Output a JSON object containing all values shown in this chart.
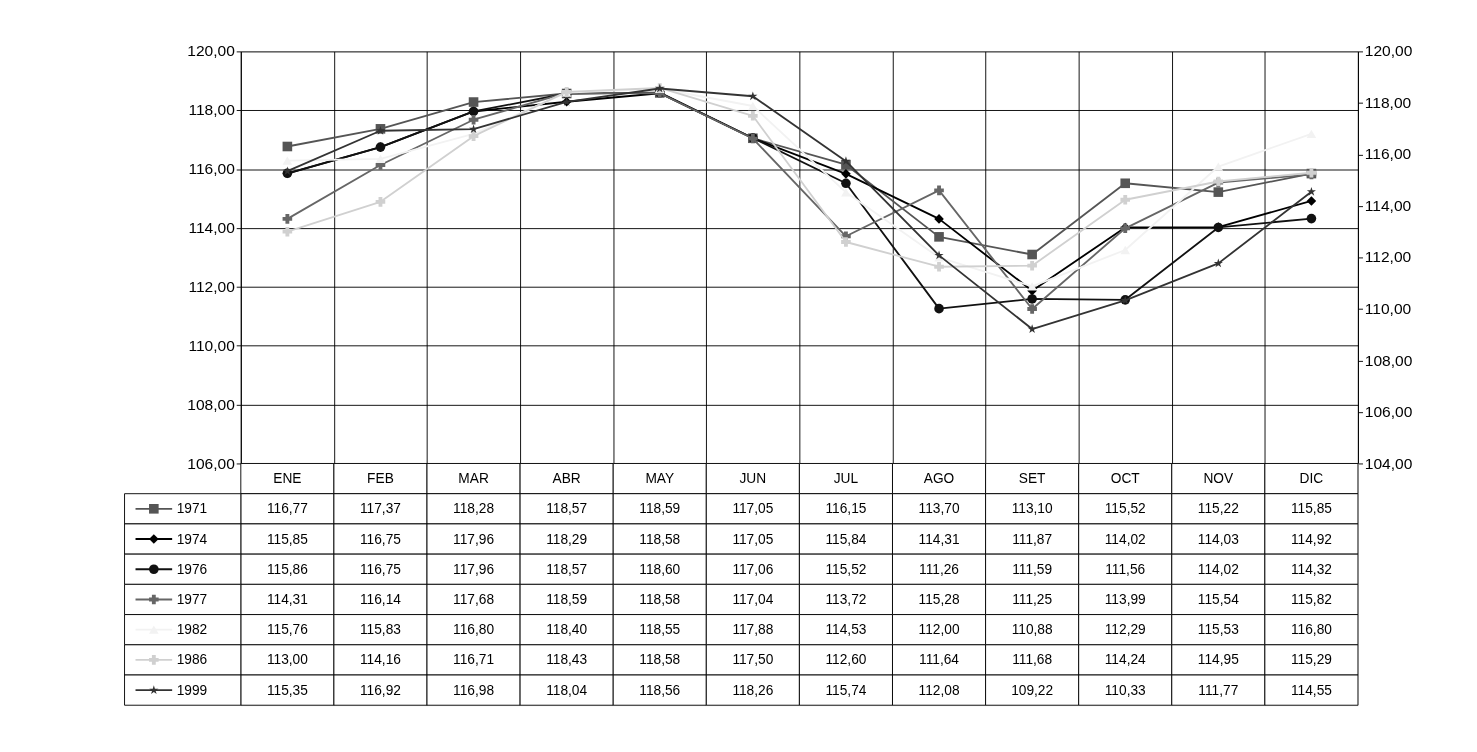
{
  "chart_data": {
    "type": "line",
    "categories": [
      "ENE",
      "FEB",
      "MAR",
      "ABR",
      "MAY",
      "JUN",
      "JUL",
      "AGO",
      "SET",
      "OCT",
      "NOV",
      "DIC"
    ],
    "ylim": [
      106,
      120
    ],
    "yticks": [
      {
        "value": 106,
        "label": "106,00"
      },
      {
        "value": 108,
        "label": "108,00"
      },
      {
        "value": 110,
        "label": "110,00"
      },
      {
        "value": 112,
        "label": "112,00"
      },
      {
        "value": 114,
        "label": "114,00"
      },
      {
        "value": 116,
        "label": "116,00"
      },
      {
        "value": 118,
        "label": "118,00"
      },
      {
        "value": 120,
        "label": "120,00"
      }
    ],
    "y2lim": [
      104,
      120
    ],
    "y2ticks": [
      {
        "value": 104,
        "label": "104,00"
      },
      {
        "value": 106,
        "label": "106,00"
      },
      {
        "value": 108,
        "label": "108,00"
      },
      {
        "value": 110,
        "label": "110,00"
      },
      {
        "value": 112,
        "label": "112,00"
      },
      {
        "value": 114,
        "label": "114,00"
      },
      {
        "value": 116,
        "label": "116,00"
      },
      {
        "value": 118,
        "label": "118,00"
      },
      {
        "value": 120,
        "label": "120,00"
      }
    ],
    "grid": true,
    "legend": "bottom",
    "line_style": "solid",
    "series": [
      {
        "name": "1971",
        "color": "#555555",
        "marker": "square",
        "values": [
          116.77,
          117.37,
          118.28,
          118.57,
          118.59,
          117.05,
          116.15,
          113.7,
          113.1,
          115.52,
          115.22,
          115.85
        ],
        "value_labels": [
          "116,77",
          "117,37",
          "118,28",
          "118,57",
          "118,59",
          "117,05",
          "116,15",
          "113,70",
          "113,10",
          "115,52",
          "115,22",
          "115,85"
        ]
      },
      {
        "name": "1974",
        "color": "#000000",
        "marker": "diamond",
        "values": [
          115.85,
          116.75,
          117.96,
          118.29,
          118.58,
          117.05,
          115.84,
          114.31,
          111.87,
          114.02,
          114.03,
          114.92
        ],
        "value_labels": [
          "115,85",
          "116,75",
          "117,96",
          "118,29",
          "118,58",
          "117,05",
          "115,84",
          "114,31",
          "111,87",
          "114,02",
          "114,03",
          "114,92"
        ]
      },
      {
        "name": "1976",
        "color": "#111111",
        "marker": "circle",
        "values": [
          115.86,
          116.75,
          117.96,
          118.57,
          118.6,
          117.06,
          115.52,
          111.26,
          111.59,
          111.56,
          114.02,
          114.32
        ],
        "value_labels": [
          "115,86",
          "116,75",
          "117,96",
          "118,57",
          "118,60",
          "117,06",
          "115,52",
          "111,26",
          "111,59",
          "111,56",
          "114,02",
          "114,32"
        ]
      },
      {
        "name": "1977",
        "color": "#666666",
        "marker": "cross",
        "values": [
          114.31,
          116.14,
          117.68,
          118.59,
          118.58,
          117.04,
          113.72,
          115.28,
          111.25,
          113.99,
          115.54,
          115.82
        ],
        "value_labels": [
          "114,31",
          "116,14",
          "117,68",
          "118,59",
          "118,58",
          "117,04",
          "113,72",
          "115,28",
          "111,25",
          "113,99",
          "115,54",
          "115,82"
        ]
      },
      {
        "name": "1982",
        "color": "#f2f2f2",
        "marker": "triangle",
        "axis": "y2",
        "values": [
          115.76,
          115.83,
          116.8,
          118.4,
          118.55,
          117.88,
          114.53,
          112.0,
          110.88,
          112.29,
          115.53,
          116.8
        ],
        "value_labels": [
          "115,76",
          "115,83",
          "116,80",
          "118,40",
          "118,55",
          "117,88",
          "114,53",
          "112,00",
          "110,88",
          "112,29",
          "115,53",
          "116,80"
        ]
      },
      {
        "name": "1986",
        "color": "#d0d0d0",
        "marker": "cross",
        "axis": "y2",
        "values": [
          113.0,
          114.16,
          116.71,
          118.43,
          118.58,
          117.5,
          112.6,
          111.64,
          111.68,
          114.24,
          114.95,
          115.29
        ],
        "value_labels": [
          "113,00",
          "114,16",
          "116,71",
          "118,43",
          "118,58",
          "117,50",
          "112,60",
          "111,64",
          "111,68",
          "114,24",
          "114,95",
          "115,29"
        ]
      },
      {
        "name": "1999",
        "color": "#333333",
        "marker": "star",
        "axis": "y2",
        "values": [
          115.35,
          116.92,
          116.98,
          118.04,
          118.56,
          118.26,
          115.74,
          112.08,
          109.22,
          110.33,
          111.77,
          114.55
        ],
        "value_labels": [
          "115,35",
          "116,92",
          "116,98",
          "118,04",
          "118,56",
          "118,26",
          "115,74",
          "112,08",
          "109,22",
          "110,33",
          "111,77",
          "114,55"
        ]
      }
    ]
  }
}
